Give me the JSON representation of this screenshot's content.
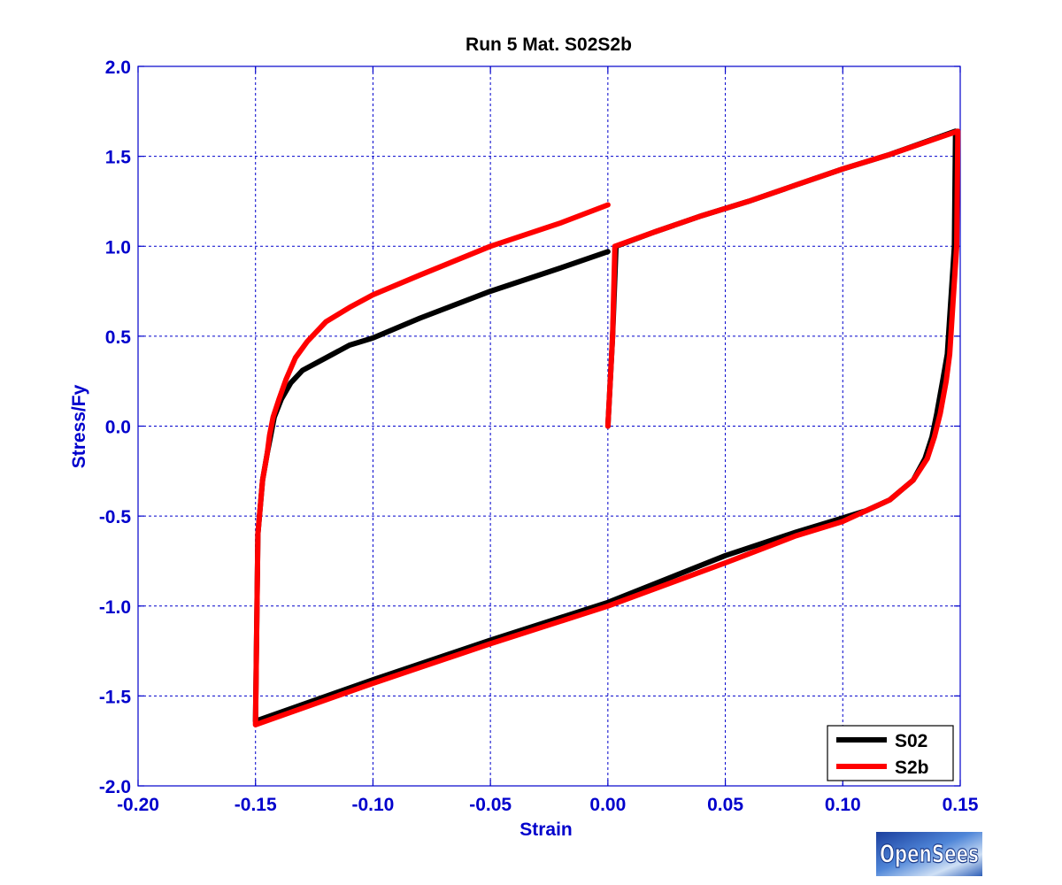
{
  "chart_data": {
    "type": "line",
    "title": "Run 5   Mat. S02S2b",
    "xlabel": "Strain",
    "ylabel": "Stress/Fy",
    "xlim": [
      -0.2,
      0.15
    ],
    "ylim": [
      -2.0,
      2.0
    ],
    "x_ticks": [
      -0.2,
      -0.15,
      -0.1,
      -0.05,
      0.0,
      0.05,
      0.1,
      0.15
    ],
    "x_tick_labels": [
      "-0.20",
      "-0.15",
      "-0.10",
      "-0.05",
      "0.00",
      "0.05",
      "0.10",
      "0.15"
    ],
    "y_ticks": [
      2.0,
      1.5,
      1.0,
      0.5,
      0.0,
      -0.5,
      -1.0,
      -1.5,
      -2.0
    ],
    "y_tick_labels": [
      "2.0",
      "1.5",
      "1.0",
      "0.5",
      "0.0",
      "-0.5",
      "-1.0",
      "-1.5",
      "-2.0"
    ],
    "grid": true,
    "legend_position": "bottom-right",
    "series": [
      {
        "name": "S02",
        "color": "#000000",
        "points": [
          [
            0.0,
            0.0
          ],
          [
            0.002,
            0.5
          ],
          [
            0.0035,
            1.0
          ],
          [
            0.02,
            1.08
          ],
          [
            0.04,
            1.17
          ],
          [
            0.06,
            1.25
          ],
          [
            0.08,
            1.34
          ],
          [
            0.1,
            1.43
          ],
          [
            0.12,
            1.51
          ],
          [
            0.148,
            1.64
          ],
          [
            0.1475,
            1.0
          ],
          [
            0.146,
            0.7
          ],
          [
            0.1445,
            0.4
          ],
          [
            0.1425,
            0.25
          ],
          [
            0.14,
            0.07
          ],
          [
            0.138,
            -0.06
          ],
          [
            0.135,
            -0.18
          ],
          [
            0.13,
            -0.3
          ],
          [
            0.12,
            -0.41
          ],
          [
            0.11,
            -0.47
          ],
          [
            0.1,
            -0.51
          ],
          [
            0.08,
            -0.59
          ],
          [
            0.05,
            -0.72
          ],
          [
            0.0,
            -0.98
          ],
          [
            -0.05,
            -1.19
          ],
          [
            -0.1,
            -1.41
          ],
          [
            -0.15,
            -1.64
          ],
          [
            -0.149,
            -0.6
          ],
          [
            -0.147,
            -0.3
          ],
          [
            -0.145,
            -0.15
          ],
          [
            -0.1435,
            -0.05
          ],
          [
            -0.142,
            0.05
          ],
          [
            -0.139,
            0.15
          ],
          [
            -0.135,
            0.24
          ],
          [
            -0.13,
            0.31
          ],
          [
            -0.12,
            0.38
          ],
          [
            -0.11,
            0.45
          ],
          [
            -0.1,
            0.49
          ],
          [
            -0.08,
            0.6
          ],
          [
            -0.05,
            0.75
          ],
          [
            -0.02,
            0.88
          ],
          [
            0.0,
            0.97
          ]
        ]
      },
      {
        "name": "S2b",
        "color": "#ff0000",
        "points": [
          [
            0.0,
            0.0
          ],
          [
            0.002,
            0.5
          ],
          [
            0.003,
            1.0
          ],
          [
            0.02,
            1.08
          ],
          [
            0.04,
            1.17
          ],
          [
            0.06,
            1.25
          ],
          [
            0.08,
            1.34
          ],
          [
            0.1,
            1.43
          ],
          [
            0.12,
            1.51
          ],
          [
            0.149,
            1.64
          ],
          [
            0.1485,
            1.0
          ],
          [
            0.147,
            0.7
          ],
          [
            0.1455,
            0.4
          ],
          [
            0.144,
            0.25
          ],
          [
            0.1415,
            0.07
          ],
          [
            0.139,
            -0.06
          ],
          [
            0.136,
            -0.18
          ],
          [
            0.13,
            -0.3
          ],
          [
            0.12,
            -0.41
          ],
          [
            0.11,
            -0.47
          ],
          [
            0.1,
            -0.53
          ],
          [
            0.08,
            -0.61
          ],
          [
            0.05,
            -0.76
          ],
          [
            0.0,
            -1.0
          ],
          [
            -0.05,
            -1.21
          ],
          [
            -0.1,
            -1.43
          ],
          [
            -0.15,
            -1.66
          ],
          [
            -0.149,
            -0.6
          ],
          [
            -0.147,
            -0.3
          ],
          [
            -0.145,
            -0.15
          ],
          [
            -0.144,
            -0.05
          ],
          [
            -0.1425,
            0.05
          ],
          [
            -0.14,
            0.15
          ],
          [
            -0.137,
            0.26
          ],
          [
            -0.133,
            0.38
          ],
          [
            -0.128,
            0.47
          ],
          [
            -0.12,
            0.58
          ],
          [
            -0.11,
            0.66
          ],
          [
            -0.1,
            0.73
          ],
          [
            -0.08,
            0.84
          ],
          [
            -0.05,
            1.0
          ],
          [
            -0.02,
            1.13
          ],
          [
            0.0,
            1.23
          ]
        ]
      }
    ]
  },
  "logo": {
    "text": "OpenSees",
    "color": "#3b6cc8"
  }
}
